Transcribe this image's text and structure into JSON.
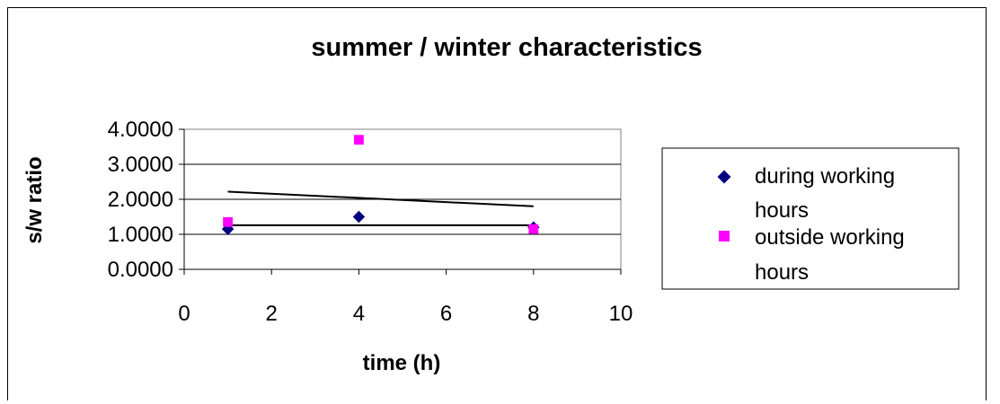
{
  "chart_data": {
    "type": "scatter",
    "title": "summer / winter characteristics",
    "xlabel": "time (h)",
    "ylabel": "s/w ratio",
    "xlim": [
      0,
      10
    ],
    "ylim": [
      0,
      4
    ],
    "x_ticks": [
      "0",
      "2",
      "4",
      "6",
      "8",
      "10"
    ],
    "y_ticks": [
      "0.0000",
      "1.0000",
      "2.0000",
      "3.0000",
      "4.0000"
    ],
    "grid": "horizontal",
    "legend_position": "right",
    "series": [
      {
        "name": "during working hours",
        "marker": "diamond",
        "color": "#000080",
        "x": [
          1,
          4,
          8
        ],
        "y": [
          1.15,
          1.5,
          1.2
        ],
        "trendline": {
          "x": [
            1,
            8
          ],
          "y": [
            1.26,
            1.26
          ]
        }
      },
      {
        "name": "outside working hours",
        "marker": "square",
        "color": "#ff00ff",
        "x": [
          1,
          4,
          8
        ],
        "y": [
          1.35,
          3.7,
          1.15
        ],
        "trendline": {
          "x": [
            1,
            8
          ],
          "y": [
            2.22,
            1.8
          ]
        }
      }
    ]
  }
}
